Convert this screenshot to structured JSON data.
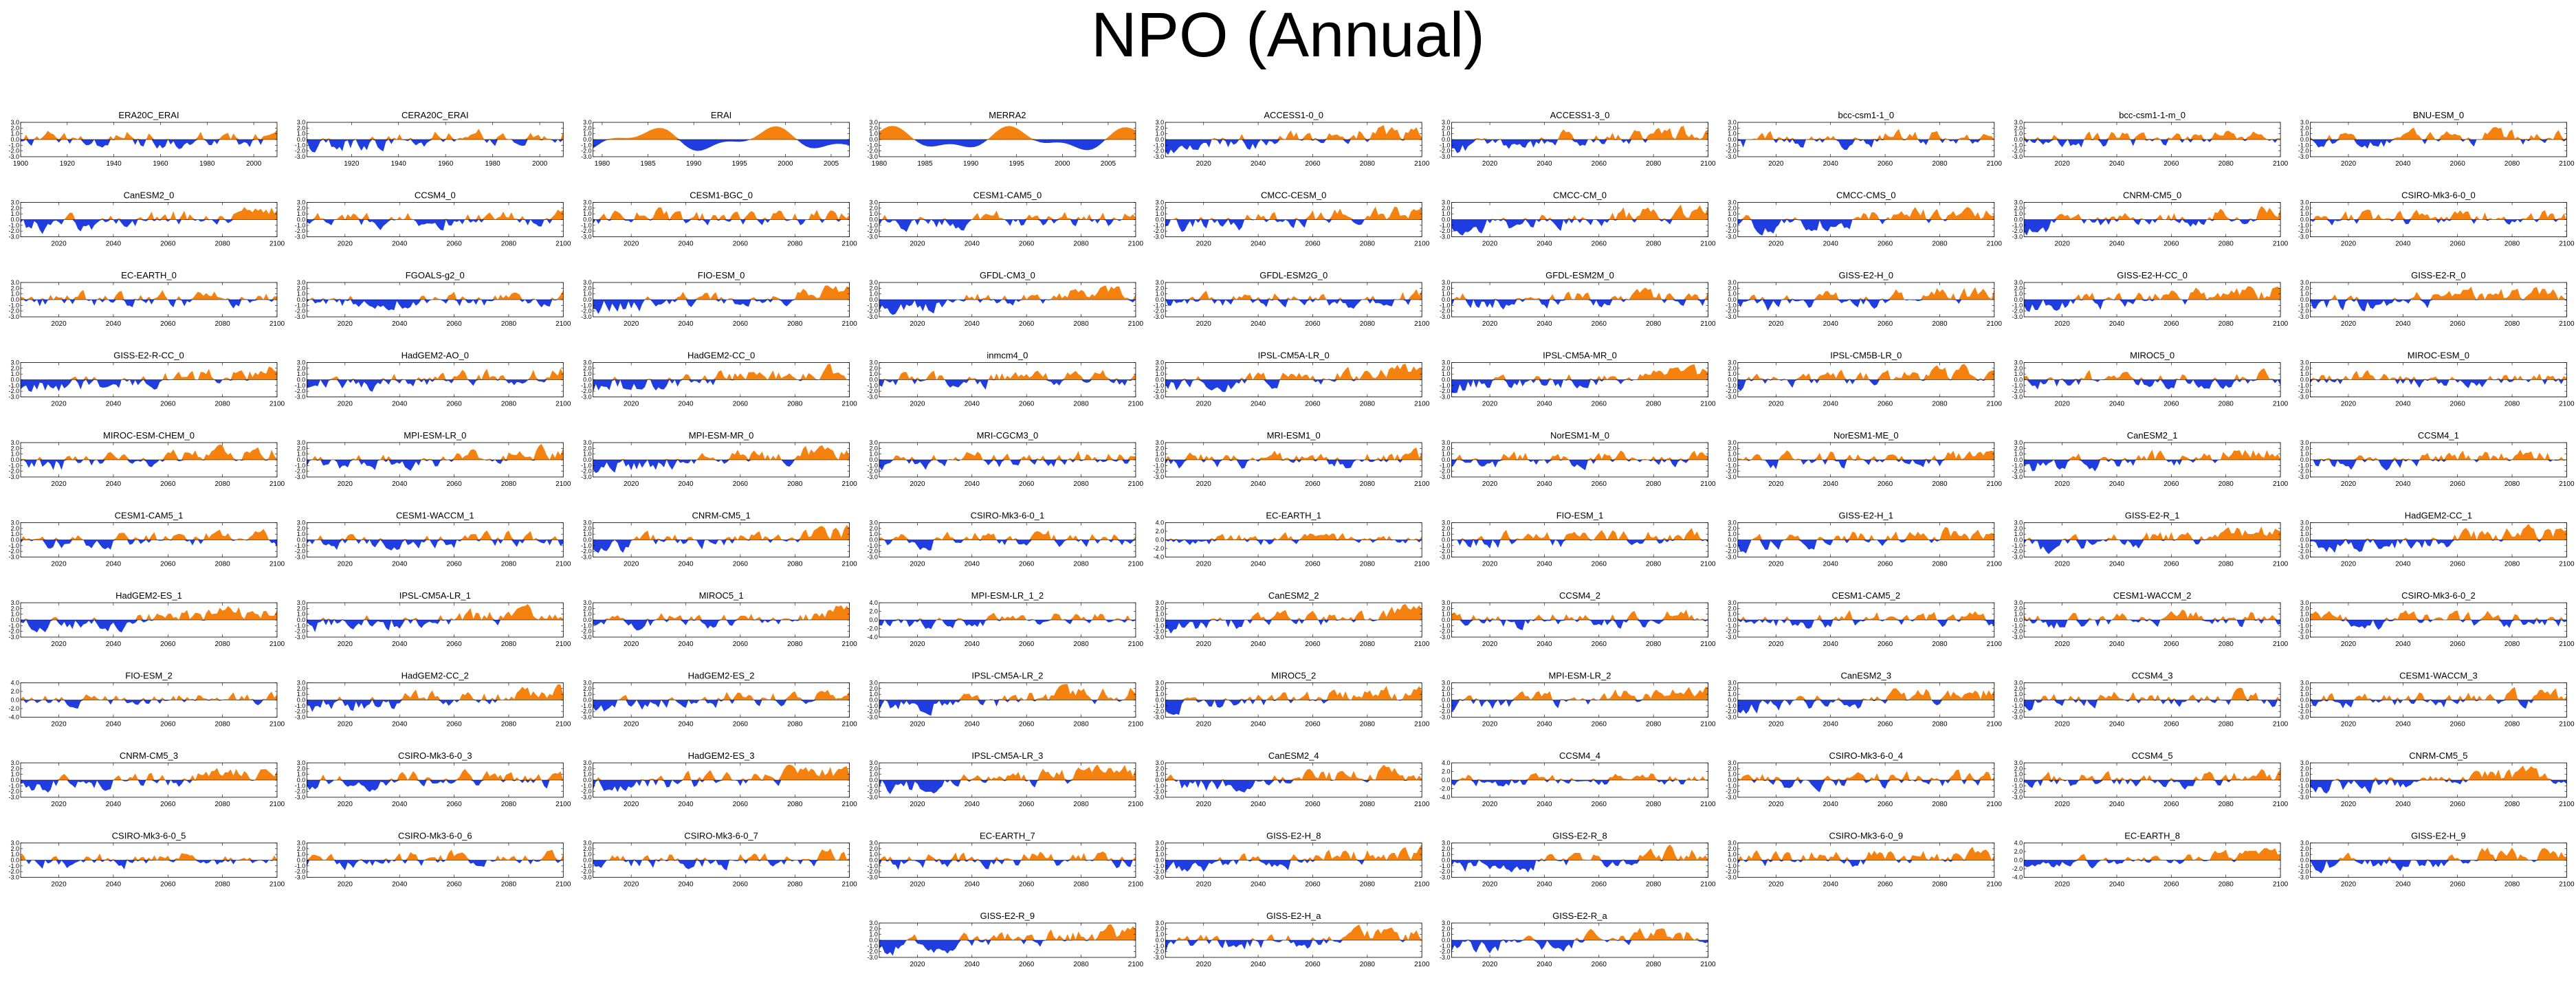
{
  "figure": {
    "title": "NPO (Annual)",
    "colors": {
      "positive": "#f5820f",
      "negative": "#1f3de0",
      "axis": "#000000"
    }
  },
  "chart_data": {
    "type": "area",
    "y_ticks_standard": [
      "3.0",
      "2.0",
      "1.0",
      "0.0",
      "-1.0",
      "-2.0",
      "-3.0"
    ],
    "y_ticks_wide": [
      "4.0",
      "2.0",
      "0.0",
      "-2.0",
      "-4.0"
    ],
    "x_ticks_future": [
      "2020",
      "2040",
      "2060",
      "2080",
      "2100"
    ],
    "panels": [
      {
        "name": "ERA20C_ERAI",
        "x_ticks": [
          "1900",
          "1920",
          "1940",
          "1960",
          "1980",
          "2000"
        ],
        "xlim": [
          1900,
          2010
        ],
        "ylim": [
          -3,
          3
        ],
        "pattern": "hist_mixed"
      },
      {
        "name": "CERA20C_ERAI",
        "x_ticks": [
          "1920",
          "1940",
          "1960",
          "1980",
          "2000"
        ],
        "xlim": [
          1901,
          2010
        ],
        "ylim": [
          -3,
          3
        ],
        "pattern": "hist_trend"
      },
      {
        "name": "ERAI",
        "x_ticks": [
          "1980",
          "1985",
          "1990",
          "1995",
          "2000",
          "2005"
        ],
        "xlim": [
          1979,
          2007
        ],
        "ylim": [
          -3,
          3
        ],
        "pattern": "smooth"
      },
      {
        "name": "MERRA2",
        "x_ticks": [
          "1980",
          "1985",
          "1990",
          "1995",
          "2000",
          "2005"
        ],
        "xlim": [
          1980,
          2008
        ],
        "ylim": [
          -3,
          3
        ],
        "pattern": "smooth"
      },
      {
        "name": "ACCESS1-0_0",
        "pattern": "trend"
      },
      {
        "name": "ACCESS1-3_0",
        "pattern": "trend"
      },
      {
        "name": "bcc-csm1-1_0",
        "pattern": "mixed"
      },
      {
        "name": "bcc-csm1-1-m_0",
        "pattern": "mixed"
      },
      {
        "name": "BNU-ESM_0",
        "pattern": "mixed"
      },
      {
        "name": "CanESM2_0",
        "pattern": "trend"
      },
      {
        "name": "CCSM4_0",
        "pattern": "mixed"
      },
      {
        "name": "CESM1-BGC_0",
        "pattern": "mixed_pos"
      },
      {
        "name": "CESM1-CAM5_0",
        "pattern": "mixed"
      },
      {
        "name": "CMCC-CESM_0",
        "pattern": "trend"
      },
      {
        "name": "CMCC-CM_0",
        "pattern": "trend"
      },
      {
        "name": "CMCC-CMS_0",
        "pattern": "trend"
      },
      {
        "name": "CNRM-CM5_0",
        "pattern": "trend"
      },
      {
        "name": "CSIRO-Mk3-6-0_0",
        "pattern": "mixed"
      },
      {
        "name": "EC-EARTH_0",
        "pattern": "mixed"
      },
      {
        "name": "FGOALS-g2_0",
        "pattern": "mixed"
      },
      {
        "name": "FIO-ESM_0",
        "pattern": "trend"
      },
      {
        "name": "GFDL-CM3_0",
        "pattern": "trend"
      },
      {
        "name": "GFDL-ESM2G_0",
        "pattern": "mixed"
      },
      {
        "name": "GFDL-ESM2M_0",
        "pattern": "mixed"
      },
      {
        "name": "GISS-E2-H_0",
        "pattern": "trend"
      },
      {
        "name": "GISS-E2-H-CC_0",
        "pattern": "trend"
      },
      {
        "name": "GISS-E2-R_0",
        "pattern": "trend"
      },
      {
        "name": "GISS-E2-R-CC_0",
        "pattern": "trend"
      },
      {
        "name": "HadGEM2-AO_0",
        "pattern": "trend"
      },
      {
        "name": "HadGEM2-CC_0",
        "pattern": "trend"
      },
      {
        "name": "inmcm4_0",
        "pattern": "mixed"
      },
      {
        "name": "IPSL-CM5A-LR_0",
        "pattern": "trend"
      },
      {
        "name": "IPSL-CM5A-MR_0",
        "pattern": "trend"
      },
      {
        "name": "IPSL-CM5B-LR_0",
        "pattern": "trend"
      },
      {
        "name": "MIROC5_0",
        "pattern": "mixed"
      },
      {
        "name": "MIROC-ESM_0",
        "pattern": "mixed"
      },
      {
        "name": "MIROC-ESM-CHEM_0",
        "pattern": "trend"
      },
      {
        "name": "MPI-ESM-LR_0",
        "pattern": "trend"
      },
      {
        "name": "MPI-ESM-MR_0",
        "pattern": "trend"
      },
      {
        "name": "MRI-CGCM3_0",
        "pattern": "mixed"
      },
      {
        "name": "MRI-ESM1_0",
        "pattern": "mixed"
      },
      {
        "name": "NorESM1-M_0",
        "pattern": "mixed"
      },
      {
        "name": "NorESM1-ME_0",
        "pattern": "mixed"
      },
      {
        "name": "CanESM2_1",
        "pattern": "trend"
      },
      {
        "name": "CCSM4_1",
        "pattern": "mixed"
      },
      {
        "name": "CESM1-CAM5_1",
        "pattern": "mixed"
      },
      {
        "name": "CESM1-WACCM_1",
        "pattern": "mixed"
      },
      {
        "name": "CNRM-CM5_1",
        "pattern": "trend"
      },
      {
        "name": "CSIRO-Mk3-6-0_1",
        "pattern": "mixed"
      },
      {
        "name": "EC-EARTH_1",
        "ylim": [
          -4,
          4
        ],
        "y_ticks_key": "wide",
        "pattern": "mixed"
      },
      {
        "name": "FIO-ESM_1",
        "pattern": "mixed"
      },
      {
        "name": "GISS-E2-H_1",
        "pattern": "trend"
      },
      {
        "name": "GISS-E2-R_1",
        "pattern": "trend"
      },
      {
        "name": "HadGEM2-CC_1",
        "pattern": "trend"
      },
      {
        "name": "HadGEM2-ES_1",
        "pattern": "trend"
      },
      {
        "name": "IPSL-CM5A-LR_1",
        "pattern": "trend"
      },
      {
        "name": "MIROC5_1",
        "pattern": "trend"
      },
      {
        "name": "MPI-ESM-LR_1_2",
        "ylim": [
          -4,
          4
        ],
        "y_ticks_key": "wide",
        "pattern": "trend"
      },
      {
        "name": "CanESM2_2",
        "pattern": "trend"
      },
      {
        "name": "CCSM4_2",
        "pattern": "mixed"
      },
      {
        "name": "CESM1-CAM5_2",
        "pattern": "mixed"
      },
      {
        "name": "CESM1-WACCM_2",
        "pattern": "mixed"
      },
      {
        "name": "CSIRO-Mk3-6-0_2",
        "pattern": "mixed"
      },
      {
        "name": "FIO-ESM_2",
        "ylim": [
          -4,
          4
        ],
        "y_ticks_key": "wide",
        "pattern": "mixed"
      },
      {
        "name": "HadGEM2-CC_2",
        "pattern": "trend"
      },
      {
        "name": "HadGEM2-ES_2",
        "pattern": "trend"
      },
      {
        "name": "IPSL-CM5A-LR_2",
        "pattern": "trend"
      },
      {
        "name": "MIROC5_2",
        "pattern": "trend"
      },
      {
        "name": "MPI-ESM-LR_2",
        "pattern": "trend"
      },
      {
        "name": "CanESM2_3",
        "pattern": "trend"
      },
      {
        "name": "CCSM4_3",
        "pattern": "mixed"
      },
      {
        "name": "CESM1-WACCM_3",
        "pattern": "mixed"
      },
      {
        "name": "CNRM-CM5_3",
        "pattern": "trend"
      },
      {
        "name": "CSIRO-Mk3-6-0_3",
        "pattern": "mixed"
      },
      {
        "name": "HadGEM2-ES_3",
        "pattern": "trend"
      },
      {
        "name": "IPSL-CM5A-LR_3",
        "pattern": "trend"
      },
      {
        "name": "CanESM2_4",
        "pattern": "trend"
      },
      {
        "name": "CCSM4_4",
        "ylim": [
          -4,
          4
        ],
        "y_ticks_key": "wide",
        "pattern": "mixed"
      },
      {
        "name": "CSIRO-Mk3-6-0_4",
        "pattern": "mixed"
      },
      {
        "name": "CCSM4_5",
        "pattern": "mixed"
      },
      {
        "name": "CNRM-CM5_5",
        "pattern": "trend"
      },
      {
        "name": "CSIRO-Mk3-6-0_5",
        "pattern": "mixed"
      },
      {
        "name": "CSIRO-Mk3-6-0_6",
        "pattern": "mixed"
      },
      {
        "name": "CSIRO-Mk3-6-0_7",
        "pattern": "mixed"
      },
      {
        "name": "EC-EARTH_7",
        "pattern": "mixed"
      },
      {
        "name": "GISS-E2-H_8",
        "pattern": "trend"
      },
      {
        "name": "GISS-E2-R_8",
        "pattern": "trend"
      },
      {
        "name": "CSIRO-Mk3-6-0_9",
        "pattern": "mixed_pos"
      },
      {
        "name": "EC-EARTH_8",
        "ylim": [
          -4,
          4
        ],
        "y_ticks_key": "wide",
        "pattern": "trend"
      },
      {
        "name": "GISS-E2-H_9",
        "pattern": "trend"
      },
      {
        "name": "GISS-E2-R_9",
        "pattern": "trend"
      },
      {
        "name": "GISS-E2-H_a",
        "pattern": "trend"
      },
      {
        "name": "GISS-E2-R_a",
        "pattern": "trend"
      }
    ]
  }
}
